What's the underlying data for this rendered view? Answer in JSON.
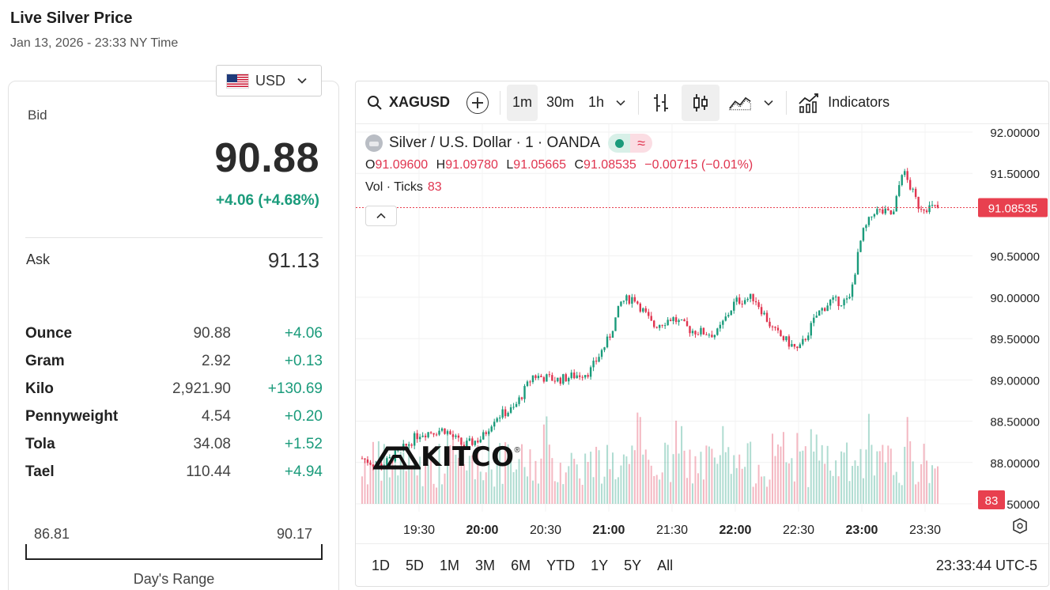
{
  "page": {
    "title": "Live Silver Price",
    "subtitle": "Jan 13, 2026 - 23:33 NY Time"
  },
  "currency": {
    "label": "USD",
    "icon": "us-flag-icon"
  },
  "quote": {
    "bid_label": "Bid",
    "bid": "90.88",
    "change": "+4.06 (+4.68%)",
    "ask_label": "Ask",
    "ask": "91.13"
  },
  "units": [
    {
      "name": "Ounce",
      "price": "90.88",
      "change": "+4.06"
    },
    {
      "name": "Gram",
      "price": "2.92",
      "change": "+0.13"
    },
    {
      "name": "Kilo",
      "price": "2,921.90",
      "change": "+130.69"
    },
    {
      "name": "Pennyweight",
      "price": "4.54",
      "change": "+0.20"
    },
    {
      "name": "Tola",
      "price": "34.08",
      "change": "+1.52"
    },
    {
      "name": "Tael",
      "price": "110.44",
      "change": "+4.94"
    }
  ],
  "days_range": {
    "low": "86.81",
    "high": "90.17",
    "label": "Day's Range"
  },
  "toolbar": {
    "symbol": "XAGUSD",
    "intervals": [
      "1m",
      "30m",
      "1h"
    ],
    "active_interval": "1m",
    "indicators_label": "Indicators"
  },
  "legend": {
    "title": "Silver / U.S. Dollar · 1 · OANDA",
    "badge_wave": "≈",
    "o_label": "O",
    "o": "91.09600",
    "h_label": "H",
    "h": "91.09780",
    "l_label": "L",
    "l": "91.05665",
    "c_label": "C",
    "c": "91.08535",
    "change": "−0.00715 (−0.01%)",
    "vol_label": "Vol · Ticks",
    "vol": "83"
  },
  "bottom": {
    "ranges": [
      "1D",
      "5D",
      "1M",
      "3M",
      "6M",
      "YTD",
      "1Y",
      "5Y",
      "All"
    ],
    "clock": "23:33:44 UTC-5"
  },
  "brand": {
    "name": "KITCO",
    "mark": "®"
  },
  "colors": {
    "up": "#1a9b7b",
    "down": "#e0344f",
    "price_tag": "#e8404f"
  },
  "chart_data": {
    "type": "candlestick",
    "x_labels": [
      "19:30",
      "20:00",
      "20:30",
      "21:00",
      "21:30",
      "22:00",
      "22:30",
      "23:00",
      "23:30"
    ],
    "bold_x_labels": [
      "20:00",
      "21:00",
      "22:00",
      "23:00"
    ],
    "y_ticks": [
      "92.00000",
      "91.50000",
      "90.50000",
      "90.00000",
      "89.50000",
      "89.00000",
      "88.50000",
      "88.00000",
      "50000"
    ],
    "y_range": [
      87.5,
      92.0
    ],
    "last_price": "91.08535",
    "last_volume": "83",
    "price_path": [
      [
        19.05,
        88.05
      ],
      [
        19.2,
        87.95
      ],
      [
        19.4,
        88.2
      ],
      [
        19.5,
        88.35
      ],
      [
        19.7,
        88.4
      ],
      [
        19.85,
        88.2
      ],
      [
        20.0,
        88.3
      ],
      [
        20.1,
        88.55
      ],
      [
        20.25,
        88.65
      ],
      [
        20.4,
        89.05
      ],
      [
        20.6,
        89.0
      ],
      [
        20.85,
        89.1
      ],
      [
        21.0,
        89.5
      ],
      [
        21.1,
        89.95
      ],
      [
        21.2,
        90.0
      ],
      [
        21.35,
        89.65
      ],
      [
        21.5,
        89.75
      ],
      [
        21.65,
        89.6
      ],
      [
        21.85,
        89.55
      ],
      [
        22.0,
        89.95
      ],
      [
        22.15,
        90.0
      ],
      [
        22.3,
        89.6
      ],
      [
        22.5,
        89.35
      ],
      [
        22.65,
        89.8
      ],
      [
        22.75,
        89.95
      ],
      [
        22.9,
        89.95
      ],
      [
        23.0,
        90.75
      ],
      [
        23.1,
        91.05
      ],
      [
        23.25,
        91.0
      ],
      [
        23.32,
        91.55
      ],
      [
        23.45,
        91.1
      ],
      [
        23.6,
        91.08
      ]
    ]
  }
}
